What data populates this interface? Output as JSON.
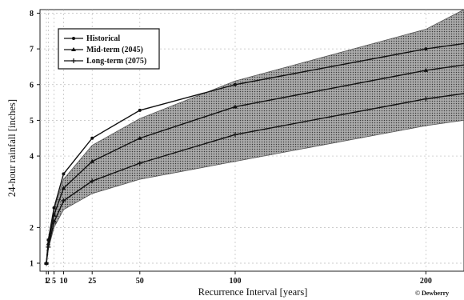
{
  "chart_data": {
    "type": "line",
    "xlabel": "Recurrence Interval [years]",
    "ylabel": "24-hour rainfall [inches]",
    "x_ticks": [
      1,
      2,
      5,
      10,
      25,
      50,
      100,
      200
    ],
    "y_ticks": [
      1,
      2,
      4,
      5,
      6,
      7,
      8
    ],
    "xlim": [
      1,
      220
    ],
    "ylim": [
      1,
      8.1
    ],
    "grid": true,
    "legend_position": "top-left",
    "x": [
      1,
      2,
      5,
      10,
      25,
      50,
      100,
      200,
      220
    ],
    "series": [
      {
        "name": "Historical",
        "marker": "circle",
        "values": [
          1.0,
          1.65,
          2.55,
          3.5,
          4.5,
          5.28,
          6.0,
          7.0,
          7.15
        ]
      },
      {
        "name": "Mid-term (2045)",
        "marker": "triangle",
        "values": [
          1.0,
          1.55,
          2.35,
          3.1,
          3.85,
          4.5,
          5.38,
          6.4,
          6.55
        ]
      },
      {
        "name": "Long-term (2075)",
        "marker": "plus",
        "values": [
          1.0,
          1.45,
          2.15,
          2.75,
          3.3,
          3.8,
          4.6,
          5.6,
          5.75
        ]
      }
    ],
    "confidence_band": {
      "lower": [
        1.0,
        1.4,
        2.0,
        2.5,
        2.95,
        3.35,
        3.85,
        4.85,
        5.0
      ],
      "upper": [
        1.0,
        1.6,
        2.5,
        3.35,
        4.3,
        5.05,
        6.1,
        7.55,
        8.1
      ]
    }
  },
  "credit": "© Dewberry"
}
